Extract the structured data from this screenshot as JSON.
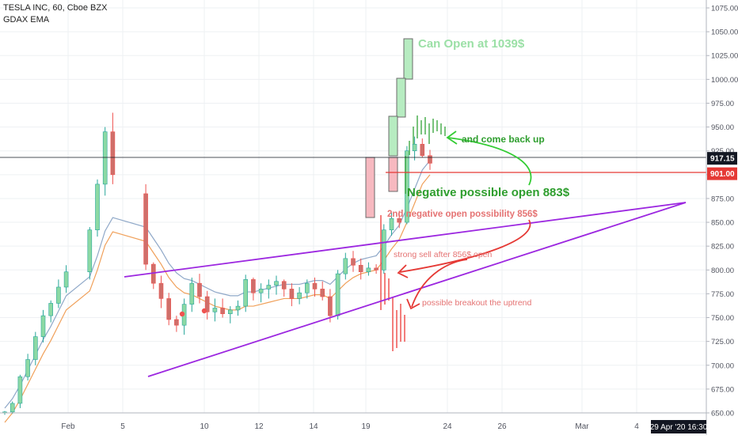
{
  "header": {
    "title": "TESLA INC, 60, Cboe BZX",
    "indicator": "GDAX EMA"
  },
  "chart_data": {
    "type": "candlestick",
    "ylim": [
      650,
      1075
    ],
    "y_ticks": [
      650,
      675,
      700,
      725,
      750,
      775,
      800,
      825,
      850,
      875,
      900,
      925,
      950,
      975,
      1000,
      1025,
      1050,
      1075
    ],
    "y_tick_labels": [
      "650.00",
      "675.00",
      "700.00",
      "725.00",
      "750.00",
      "775.00",
      "800.00",
      "825.00",
      "850.00",
      "875.00",
      "900.00",
      "925.00",
      "950.00",
      "975.00",
      "1000.00",
      "1025.00",
      "1050.00",
      "1075.00"
    ],
    "x_ticks": [
      "Feb",
      "5",
      "10",
      "12",
      "14",
      "19",
      "24",
      "26",
      "Mar",
      "4"
    ],
    "price_labels": [
      {
        "text": "917.15",
        "value": 917.15,
        "color": "#131722"
      },
      {
        "text": "901.00",
        "value": 901.0,
        "color": "#e53935"
      }
    ],
    "date_badge": "29 Apr '20   16:30",
    "annotations": [
      {
        "text": "Can Open at 1039$",
        "color": "#9be0a6"
      },
      {
        "text": "and come back up",
        "color": "#2e9e2e"
      },
      {
        "text": "Negative possible open 883$",
        "color": "#2e9e2e"
      },
      {
        "text": "2nd negative open possibility 856$",
        "color": "#e57373"
      },
      {
        "text": "strong sell after 856$ open",
        "color": "#e57373"
      },
      {
        "text": "possible breakout the uptrend",
        "color": "#e57373"
      }
    ],
    "series": [
      {
        "name": "TESLA INC",
        "ohlc": [
          [
            650,
            652,
            648,
            651
          ],
          [
            651,
            662,
            649,
            660
          ],
          [
            660,
            690,
            655,
            688
          ],
          [
            688,
            712,
            684,
            706
          ],
          [
            706,
            735,
            700,
            730
          ],
          [
            730,
            758,
            724,
            752
          ],
          [
            752,
            768,
            745,
            765
          ],
          [
            765,
            790,
            760,
            782
          ],
          [
            782,
            805,
            776,
            798
          ],
          [
            798,
            845,
            790,
            842
          ],
          [
            842,
            895,
            835,
            890
          ],
          [
            890,
            950,
            878,
            945
          ],
          [
            945,
            965,
            890,
            900
          ],
          [
            880,
            890,
            800,
            806
          ],
          [
            806,
            808,
            780,
            786
          ],
          [
            786,
            794,
            760,
            770
          ],
          [
            770,
            776,
            742,
            748
          ],
          [
            748,
            752,
            735,
            742
          ],
          [
            742,
            770,
            732,
            764
          ],
          [
            764,
            792,
            756,
            786
          ],
          [
            786,
            796,
            765,
            772
          ],
          [
            772,
            778,
            748,
            756
          ],
          [
            756,
            770,
            746,
            760
          ],
          [
            760,
            770,
            750,
            754
          ],
          [
            754,
            762,
            744,
            758
          ],
          [
            758,
            768,
            752,
            762
          ],
          [
            762,
            795,
            756,
            790
          ],
          [
            790,
            792,
            768,
            776
          ],
          [
            776,
            786,
            766,
            780
          ],
          [
            780,
            790,
            770,
            784
          ],
          [
            784,
            794,
            774,
            788
          ],
          [
            788,
            790,
            772,
            780
          ],
          [
            780,
            786,
            762,
            770
          ],
          [
            770,
            782,
            764,
            776
          ],
          [
            776,
            790,
            770,
            786
          ],
          [
            786,
            792,
            772,
            780
          ],
          [
            780,
            788,
            768,
            772
          ],
          [
            772,
            780,
            745,
            752
          ],
          [
            752,
            800,
            748,
            796
          ],
          [
            796,
            818,
            790,
            812
          ],
          [
            812,
            820,
            798,
            805
          ],
          [
            805,
            812,
            790,
            798
          ],
          [
            798,
            808,
            794,
            802
          ],
          [
            802,
            806,
            796,
            800
          ],
          [
            800,
            848,
            796,
            842
          ],
          [
            842,
            860,
            836,
            854
          ],
          [
            854,
            862,
            844,
            850
          ],
          [
            850,
            930,
            848,
            925
          ],
          [
            925,
            940,
            915,
            932
          ],
          [
            932,
            938,
            918,
            920
          ],
          [
            920,
            926,
            905,
            912
          ]
        ]
      },
      {
        "name": "GDAX EMA",
        "values": [
          640,
          650,
          664,
          680,
          696,
          712,
          726,
          742,
          758,
          778,
          800,
          826,
          840,
          830,
          818,
          806,
          792,
          782,
          776,
          774,
          770,
          766,
          762,
          760,
          758,
          758,
          762,
          762,
          764,
          766,
          768,
          770,
          770,
          770,
          772,
          774,
          774,
          770,
          778,
          786,
          792,
          796,
          798,
          800,
          810,
          822,
          832,
          850,
          870,
          890,
          900
        ]
      }
    ]
  }
}
